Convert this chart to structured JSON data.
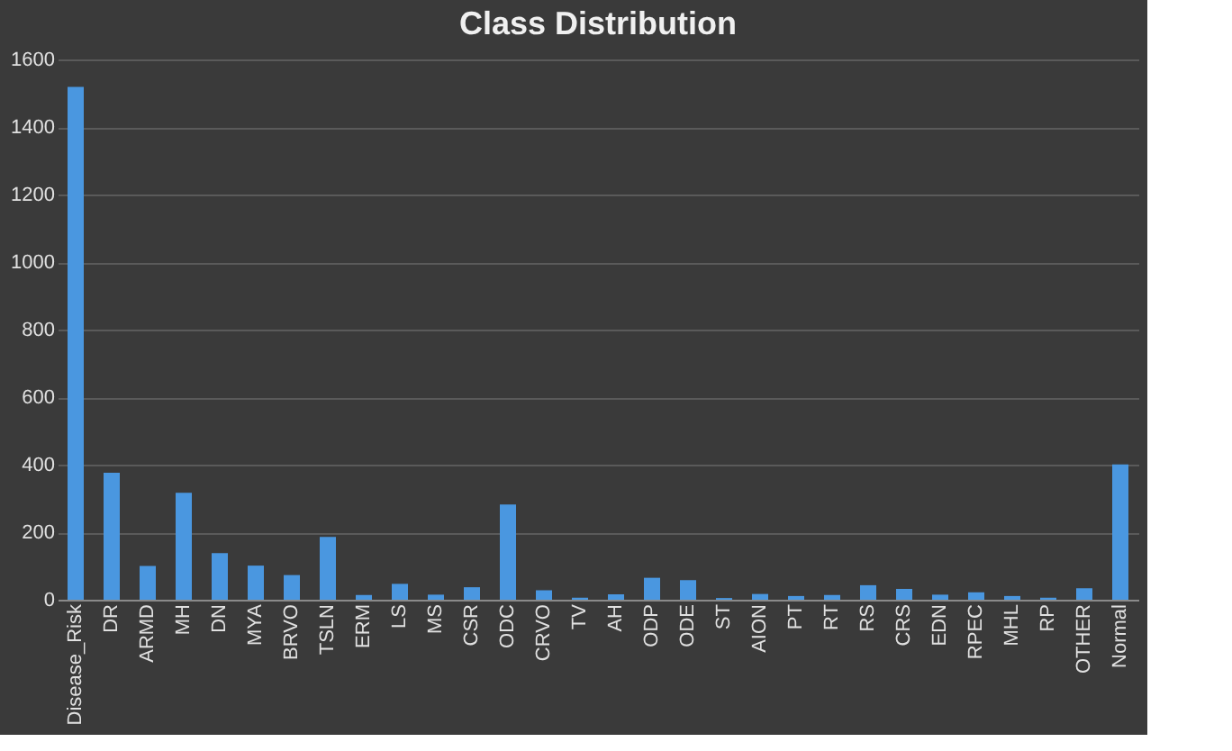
{
  "chart_data": {
    "type": "bar",
    "title": "Class Distribution",
    "categories": [
      "Disease_Risk",
      "DR",
      "ARMD",
      "MH",
      "DN",
      "MYA",
      "BRVO",
      "TSLN",
      "ERM",
      "LS",
      "MS",
      "CSR",
      "ODC",
      "CRVO",
      "TV",
      "AH",
      "ODP",
      "ODE",
      "ST",
      "AION",
      "PT",
      "RT",
      "RS",
      "CRS",
      "EDN",
      "RPEC",
      "MHL",
      "RP",
      "OTHER",
      "Normal"
    ],
    "values": [
      1519,
      376,
      100,
      317,
      138,
      101,
      73,
      186,
      14,
      47,
      15,
      37,
      282,
      28,
      6,
      16,
      65,
      58,
      5,
      17,
      11,
      14,
      43,
      32,
      15,
      22,
      11,
      6,
      34,
      401
    ],
    "color": "#4a97e0",
    "ylim": [
      0,
      1600
    ],
    "yticks": [
      0,
      200,
      400,
      600,
      800,
      1000,
      1200,
      1400,
      1600
    ],
    "grid": "y"
  }
}
